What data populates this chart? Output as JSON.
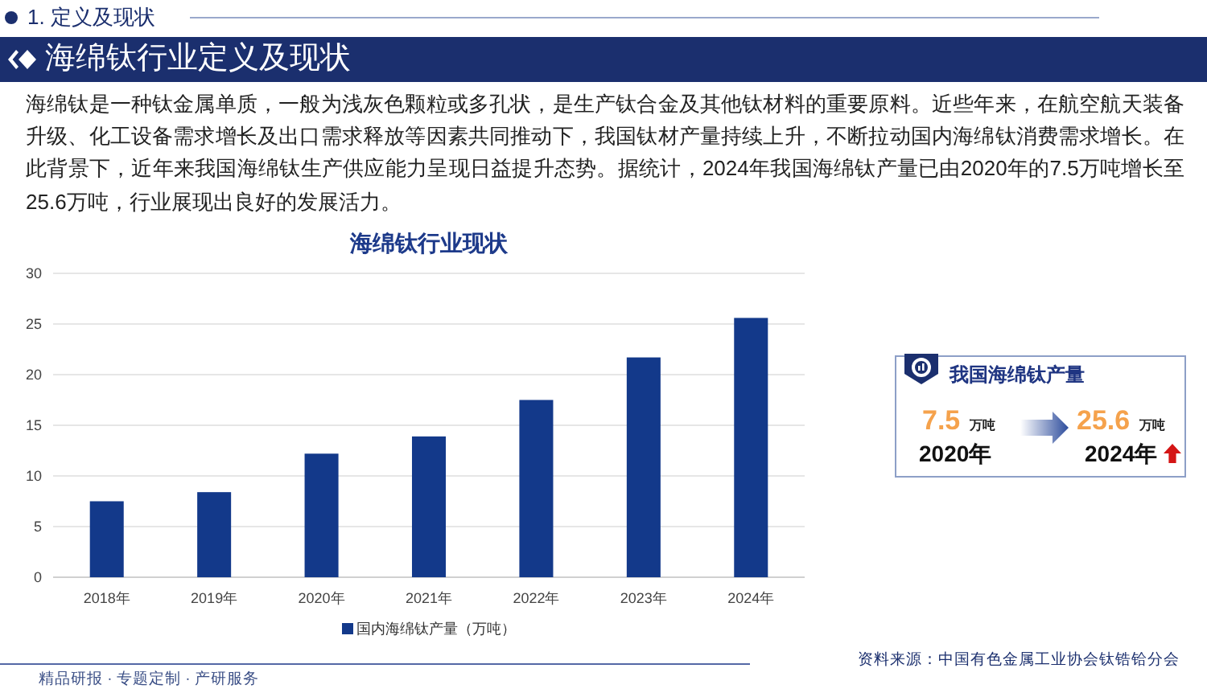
{
  "chart_data": [
    {
      "type": "bar",
      "title": "海绵钛行业现状",
      "categories": [
        "2018年",
        "2019年",
        "2020年",
        "2021年",
        "2022年",
        "2023年",
        "2024年"
      ],
      "series": [
        {
          "name": "国内海绵钛产量（万吨）",
          "color": "#13398a",
          "values": [
            7.5,
            8.4,
            12.2,
            13.9,
            17.5,
            21.7,
            25.6
          ]
        }
      ],
      "ylim": [
        0,
        30
      ],
      "yticks": [
        0,
        5,
        10,
        15,
        20,
        25,
        30
      ],
      "grid": "y",
      "legend": "bottom",
      "annotations": [
        "1. 定义及现状",
        "海绵钛行业定义及现状",
        "海绵钛是一种钛金属单质，一般为浅灰色颗粒或多孔状，是生产钛合金及其他钛材料的重要原料。近些年来，在航空航天装备升级、化工设备需求增长及出口需求释放等因素共同推动下，我国钛材产量持续上升，不断拉动国内海绵钛消费需求增长。在此背景下，近年来我国海绵钛生产供应能力呈现日益提升态势。据统计，2024年我国海绵钛产量已由2020年的7.5万吨增长至25.6万吨，行业展现出良好的发展活力。",
        "精品研报 · 专题定制 · 产研服务",
        "资料来源：中国有色金属工业协会钛锆铪分会"
      ]
    },
    {
      "type": "other",
      "title": "我国海绵钛产量",
      "categories": [
        "2020年",
        "2024年"
      ],
      "values": [
        7.5,
        25.6
      ],
      "ylabel": "万吨",
      "data_labels": true
    }
  ]
}
